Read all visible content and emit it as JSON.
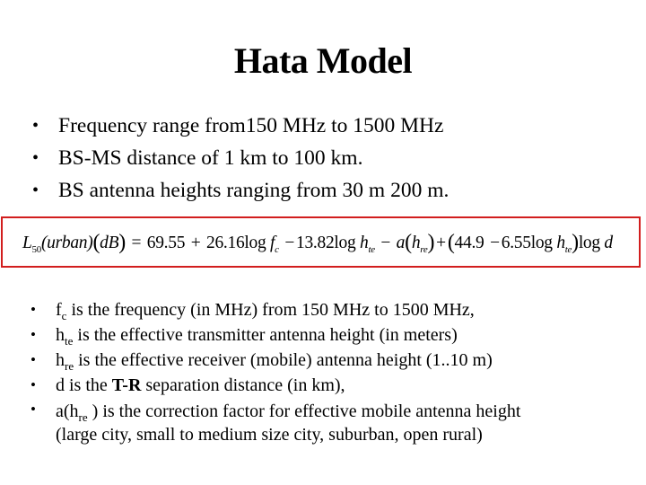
{
  "slide": {
    "title": "Hata Model",
    "top_bullets": [
      "Frequency range from150 MHz to 1500 MHz",
      "BS-MS distance of 1 km to 100 km.",
      "BS antenna heights ranging from 30 m 200 m."
    ],
    "equation": {
      "lhs_symbol": "L",
      "lhs_subscript": "50",
      "lhs_arg": "(urban)",
      "lhs_unit": "dB",
      "equals": "=",
      "c1": "69.55",
      "plus1": "+",
      "c2": "26.16",
      "log1": "log",
      "f_symbol": "f",
      "f_sub": "c",
      "minus1": "−",
      "c3": "13.82",
      "log2": "log",
      "h_symbol": "h",
      "hte_sub": "te",
      "minus2": "−",
      "a_symbol": "a",
      "hre_sub": "re",
      "plus2": "+",
      "c4": "44.9",
      "minus3": "−",
      "c5": "6.55",
      "log3": "log",
      "log4": "log",
      "d_symbol": "d",
      "border_color": "#d21e1e"
    },
    "definitions": [
      {
        "prefix": "f",
        "sub": "c",
        "text": " is the frequency (in MHz) from 150 MHz to 1500 MHz,"
      },
      {
        "prefix": "h",
        "sub": "te",
        "text": " is the effective transmitter antenna height (in meters)"
      },
      {
        "prefix": "h",
        "sub": "re",
        "text": " is the effective receiver (mobile) antenna height (1..10 m)"
      },
      {
        "prefix": "d is the ",
        "bold": "T-R",
        "text": " separation distance (in km),"
      },
      {
        "prefix": "a(h",
        "sub": "re",
        "text": " ) is the correction factor for effective mobile antenna height",
        "continuation": "(large city, small to medium size city, suburban, open rural)"
      }
    ],
    "bullet_glyph": "•"
  }
}
